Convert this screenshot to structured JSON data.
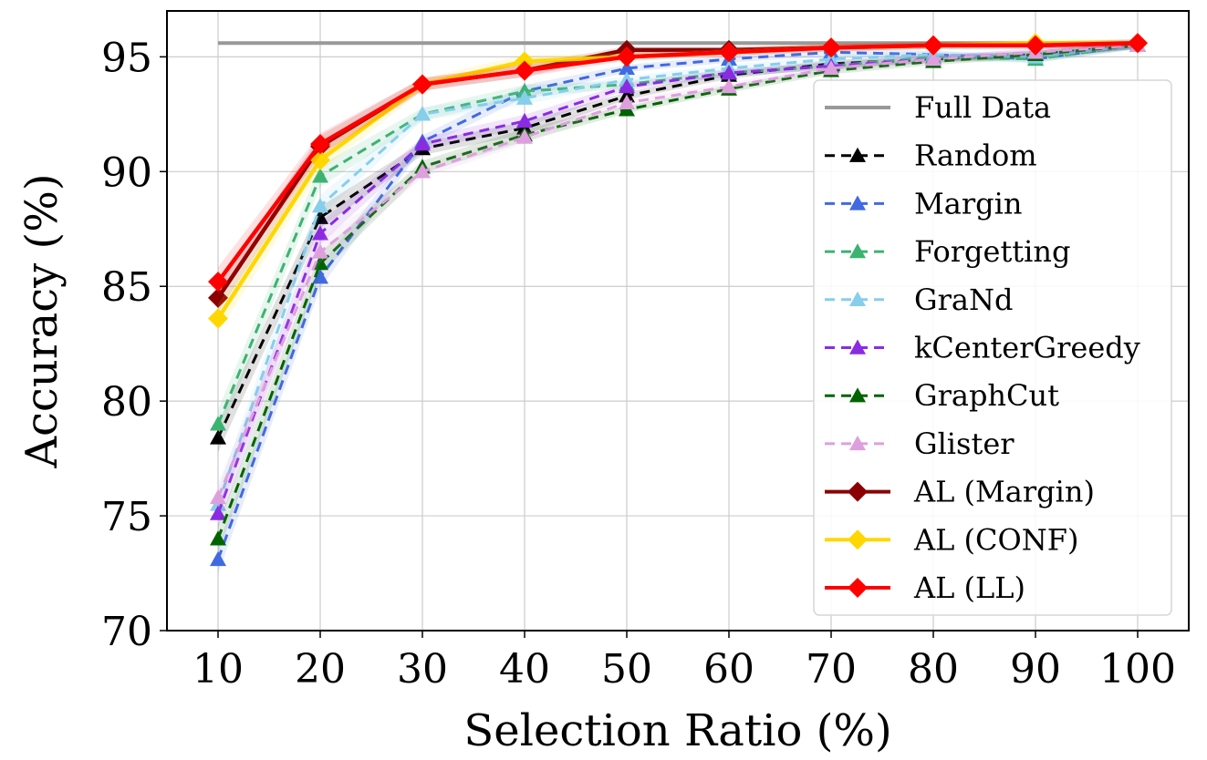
{
  "chart_data": {
    "type": "line",
    "xlabel": "Selection Ratio (%)",
    "ylabel": "Accuracy (%)",
    "x": [
      10,
      20,
      30,
      40,
      50,
      60,
      70,
      80,
      90,
      100
    ],
    "xlim": [
      5,
      105
    ],
    "ylim": [
      70,
      97
    ],
    "xticks": [
      10,
      20,
      30,
      40,
      50,
      60,
      70,
      80,
      90,
      100
    ],
    "yticks": [
      70,
      75,
      80,
      85,
      90,
      95
    ],
    "grid": true,
    "legend_position": "right",
    "reference_line": {
      "name": "Full Data",
      "value": 95.6,
      "color": "#999999"
    },
    "series": [
      {
        "name": "Random",
        "color": "#000000",
        "style": "dashed",
        "marker": "triangle",
        "values": [
          78.4,
          88.0,
          91.0,
          91.9,
          93.3,
          94.2,
          94.7,
          94.9,
          95.1,
          95.5
        ]
      },
      {
        "name": "Margin",
        "color": "#4169e1",
        "style": "dashed",
        "marker": "triangle",
        "values": [
          73.1,
          85.4,
          91.3,
          93.5,
          94.5,
          94.9,
          95.2,
          95.1,
          94.9,
          95.5
        ]
      },
      {
        "name": "Forgetting",
        "color": "#3cb371",
        "style": "dashed",
        "marker": "triangle",
        "values": [
          79.0,
          89.8,
          92.5,
          93.5,
          93.8,
          94.3,
          94.6,
          95.0,
          94.9,
          95.5
        ]
      },
      {
        "name": "GraNd",
        "color": "#87ceeb",
        "style": "dashed",
        "marker": "triangle",
        "values": [
          75.5,
          88.5,
          92.5,
          93.2,
          94.0,
          94.5,
          94.9,
          95.1,
          95.0,
          95.5
        ]
      },
      {
        "name": "kCenterGreedy",
        "color": "#8a2be2",
        "style": "dashed",
        "marker": "triangle",
        "values": [
          75.1,
          87.3,
          91.2,
          92.2,
          93.7,
          94.3,
          94.6,
          94.9,
          95.2,
          95.5
        ]
      },
      {
        "name": "GraphCut",
        "color": "#006400",
        "style": "dashed",
        "marker": "triangle",
        "values": [
          74.0,
          86.0,
          90.2,
          91.6,
          92.7,
          93.6,
          94.4,
          94.8,
          95.1,
          95.5
        ]
      },
      {
        "name": "Glister",
        "color": "#dda0dd",
        "style": "dashed",
        "marker": "triangle",
        "values": [
          75.8,
          86.5,
          90.0,
          91.5,
          93.0,
          93.7,
          94.5,
          94.9,
          95.2,
          95.5
        ]
      },
      {
        "name": "AL (Margin)",
        "color": "#8b0000",
        "style": "solid",
        "marker": "diamond",
        "values": [
          84.5,
          91.1,
          93.8,
          94.4,
          95.3,
          95.3,
          95.4,
          95.5,
          95.5,
          95.6
        ]
      },
      {
        "name": "AL (CONF)",
        "color": "#ffd700",
        "style": "solid",
        "marker": "diamond",
        "values": [
          83.6,
          90.5,
          93.8,
          94.8,
          95.0,
          95.2,
          95.4,
          95.5,
          95.6,
          95.6
        ]
      },
      {
        "name": "AL (LL)",
        "color": "#ff0000",
        "style": "solid",
        "marker": "diamond",
        "values": [
          85.2,
          91.2,
          93.8,
          94.4,
          95.0,
          95.2,
          95.4,
          95.5,
          95.5,
          95.6
        ]
      }
    ]
  }
}
